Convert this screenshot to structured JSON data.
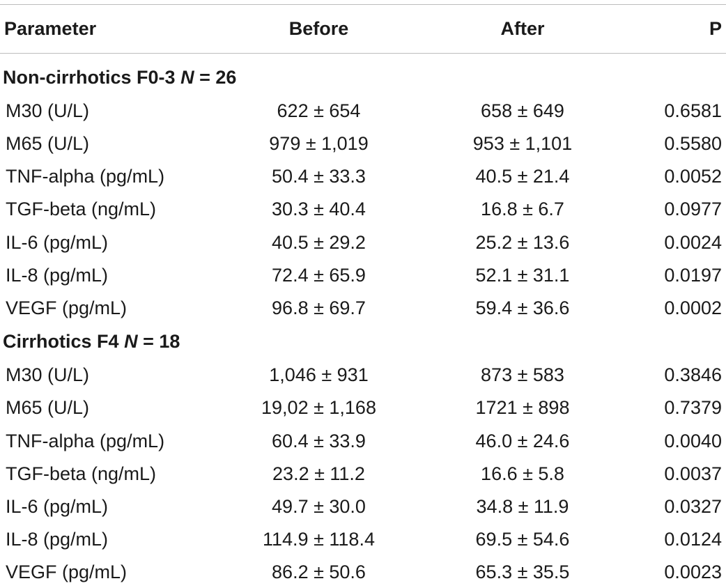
{
  "header": {
    "parameter": "Parameter",
    "before": "Before",
    "after": "After",
    "p": "P"
  },
  "groups": [
    {
      "label": "Non-cirrhotics F0-3",
      "n_label": "N",
      "n_value": "= 26",
      "rows": [
        {
          "parameter": "M30 (U/L)",
          "before": "622 ± 654",
          "after": "658 ± 649",
          "p": "0.6581"
        },
        {
          "parameter": "M65 (U/L)",
          "before": "979 ± 1,019",
          "after": "953 ± 1,101",
          "p": "0.5580"
        },
        {
          "parameter": "TNF-alpha (pg/mL)",
          "before": "50.4 ± 33.3",
          "after": "40.5 ± 21.4",
          "p": "0.0052"
        },
        {
          "parameter": "TGF-beta (ng/mL)",
          "before": "30.3 ± 40.4",
          "after": "16.8 ± 6.7",
          "p": "0.0977"
        },
        {
          "parameter": "IL-6 (pg/mL)",
          "before": "40.5 ± 29.2",
          "after": "25.2 ± 13.6",
          "p": "0.0024"
        },
        {
          "parameter": "IL-8 (pg/mL)",
          "before": "72.4 ± 65.9",
          "after": "52.1 ± 31.1",
          "p": "0.0197"
        },
        {
          "parameter": "VEGF (pg/mL)",
          "before": "96.8 ± 69.7",
          "after": "59.4 ± 36.6",
          "p": "0.0002"
        }
      ]
    },
    {
      "label": "Cirrhotics F4",
      "n_label": "N",
      "n_value": "= 18",
      "rows": [
        {
          "parameter": "M30 (U/L)",
          "before": "1,046 ± 931",
          "after": "873 ± 583",
          "p": "0.3846"
        },
        {
          "parameter": "M65 (U/L)",
          "before": "19,02 ± 1,168",
          "after": "1721 ± 898",
          "p": "0.7379"
        },
        {
          "parameter": "TNF-alpha (pg/mL)",
          "before": "60.4 ± 33.9",
          "after": "46.0 ± 24.6",
          "p": "0.0040"
        },
        {
          "parameter": "TGF-beta (ng/mL)",
          "before": "23.2 ± 11.2",
          "after": "16.6 ± 5.8",
          "p": "0.0037"
        },
        {
          "parameter": "IL-6 (pg/mL)",
          "before": "49.7 ± 30.0",
          "after": "34.8 ± 11.9",
          "p": "0.0327"
        },
        {
          "parameter": "IL-8 (pg/mL)",
          "before": "114.9 ± 118.4",
          "after": "69.5 ± 54.6",
          "p": "0.0124"
        },
        {
          "parameter": "VEGF (pg/mL)",
          "before": "86.2 ± 50.6",
          "after": "65.3 ± 35.5",
          "p": "0.0023"
        }
      ]
    }
  ]
}
